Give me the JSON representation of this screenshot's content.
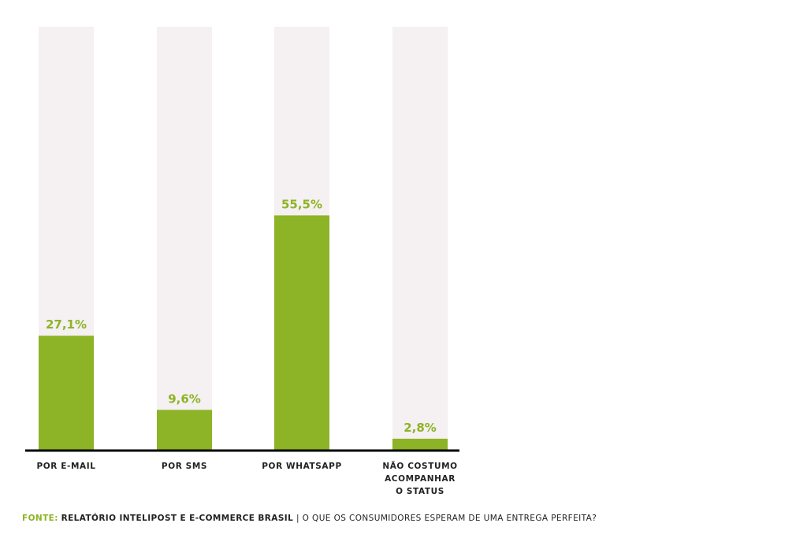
{
  "chart_data": {
    "type": "bar",
    "categories": [
      [
        "POR E-MAIL"
      ],
      [
        "POR SMS"
      ],
      [
        "POR WHATSAPP"
      ],
      [
        "NÃO COSTUMO",
        "ACOMPANHAR",
        "O STATUS"
      ]
    ],
    "values": [
      27.1,
      9.6,
      55.5,
      2.8
    ],
    "value_labels": [
      "27,1%",
      "9,6%",
      "55,5%",
      "2,8%"
    ],
    "ylim": [
      0,
      100
    ],
    "grid": false,
    "colors": {
      "bar": "#8db326",
      "track": "#f5f0f1",
      "value_text": "#8db326",
      "axis": "#000000",
      "category_text": "#222222"
    }
  },
  "source": {
    "label": "FONTE:",
    "name": "RELATÓRIO INTELIPOST E E-COMMERCE BRASIL",
    "separator": "|",
    "title": "O QUE OS CONSUMIDORES ESPERAM DE UMA ENTREGA PERFEITA?"
  }
}
